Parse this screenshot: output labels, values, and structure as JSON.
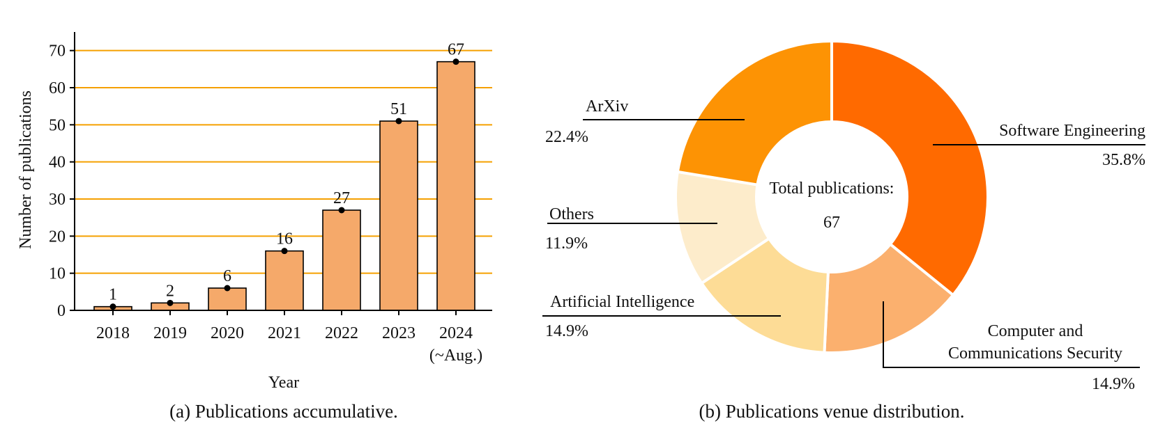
{
  "chart_data": [
    {
      "type": "bar",
      "title": "",
      "caption": "(a) Publications accumulative.",
      "xlabel": "Year",
      "ylabel": "Number of publications",
      "categories": [
        "2018",
        "2019",
        "2020",
        "2021",
        "2022",
        "2023",
        "2024"
      ],
      "category_sublabels": [
        "",
        "",
        "",
        "",
        "",
        "",
        "(~Aug.)"
      ],
      "values": [
        1,
        2,
        6,
        16,
        27,
        51,
        67
      ],
      "ylim": [
        0,
        75
      ],
      "yticks": [
        0,
        10,
        20,
        30,
        40,
        50,
        60,
        70
      ],
      "grid": true,
      "colors": {
        "bar": "#f5a96a",
        "grid": "#f5a000",
        "marker": "#000000"
      }
    },
    {
      "type": "pie",
      "donut": true,
      "caption": "(b) Publications venue distribution.",
      "center_label": "Total publications:",
      "center_value": "67",
      "slices": [
        {
          "label": "Software Engineering",
          "percent_label": "35.8%",
          "value": 35.8,
          "color": "#ff6a00"
        },
        {
          "label": "Computer and Communications Security",
          "label_lines": [
            "Computer and",
            "Communications Security"
          ],
          "percent_label": "14.9%",
          "value": 14.9,
          "color": "#fbb06e"
        },
        {
          "label": "Artificial Intelligence",
          "percent_label": "14.9%",
          "value": 14.9,
          "color": "#fddc96"
        },
        {
          "label": "Others",
          "percent_label": "11.9%",
          "value": 11.9,
          "color": "#fdeccb"
        },
        {
          "label": "ArXiv",
          "percent_label": "22.4%",
          "value": 22.4,
          "color": "#fd9304"
        }
      ]
    }
  ]
}
